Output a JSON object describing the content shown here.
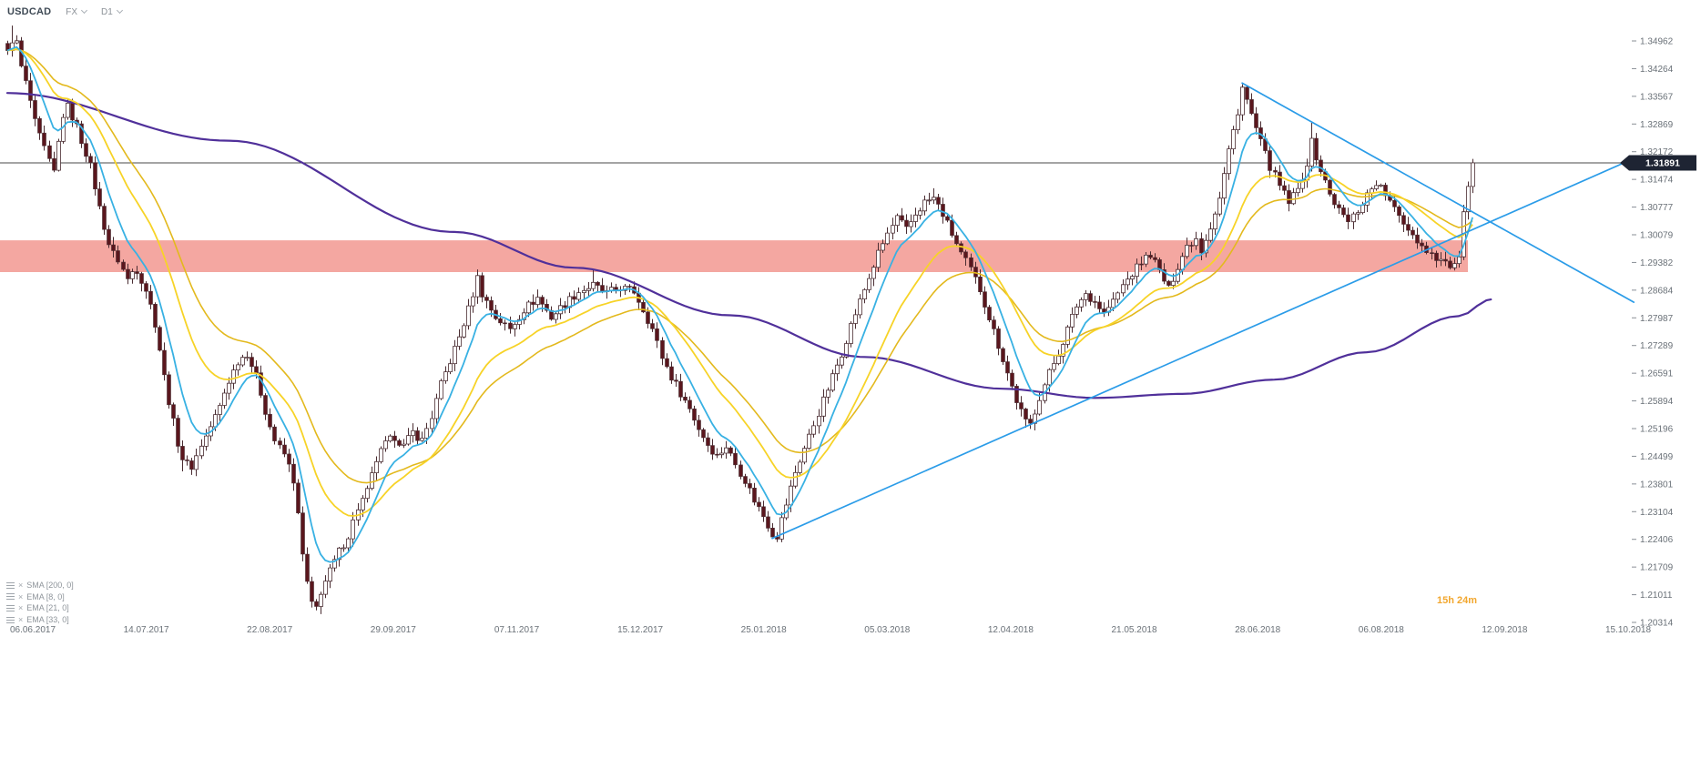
{
  "header": {
    "symbol": "USDCAD",
    "market": "FX",
    "timeframe": "D1"
  },
  "price_scale": {
    "labels": [
      "1.34962",
      "1.34264",
      "1.33567",
      "1.32869",
      "1.32172",
      "1.31474",
      "1.30777",
      "1.30079",
      "1.29382",
      "1.28684",
      "1.27987",
      "1.27289",
      "1.26591",
      "1.25894",
      "1.25196",
      "1.24499",
      "1.23801",
      "1.23104",
      "1.22406",
      "1.21709",
      "1.21011",
      "1.20314"
    ],
    "current_price_label": "1.31891",
    "countdown": "15h 24m"
  },
  "time_scale": {
    "labels": [
      "06.06.2017",
      "14.07.2017",
      "22.08.2017",
      "29.09.2017",
      "07.11.2017",
      "15.12.2017",
      "25.01.2018",
      "05.03.2018",
      "12.04.2018",
      "21.05.2018",
      "28.06.2018",
      "06.08.2018",
      "12.09.2018",
      "15.10.2018"
    ]
  },
  "legend": {
    "items": [
      {
        "label": "SMA [200, 0]"
      },
      {
        "label": "EMA [8, 0]"
      },
      {
        "label": "EMA [21, 0]"
      },
      {
        "label": "EMA [33, 0]"
      }
    ]
  },
  "colors": {
    "up_candle": "#ffffff",
    "down_candle": "#5a161d",
    "candle_outline": "#4a2d32",
    "sma200": "#50309a",
    "ema8": "#38b1e3",
    "ema21": "#f7d327",
    "ema33": "#e3b91d",
    "trendline": "#2b9ce8",
    "zone_fill": "#ea4f44",
    "price_line": "#4a4a4a",
    "badge_bg": "#1e2433",
    "badge_text": "#ffffff",
    "axis_text": "#6a7178",
    "tick": "#8a8f96",
    "countdown": "#f2a72e"
  },
  "chart_data": {
    "type": "candlestick",
    "symbol": "USDCAD",
    "timeframe": "D1",
    "current_price": 1.31891,
    "y_axis": {
      "min": 1.20314,
      "max": 1.34962,
      "tick_step": 0.006975
    },
    "x_axis": {
      "start": "06.06.2017",
      "end": "15.10.2018"
    },
    "support_zone": {
      "price_low": 1.2914,
      "price_high": 1.2994,
      "from_day": 0,
      "to_day": 317
    },
    "trendlines": [
      {
        "name": "ascending-support",
        "from": [
          166,
          1.2243
        ],
        "to": [
          353,
          1.32
        ]
      },
      {
        "name": "descending-resistance",
        "from": [
          268,
          1.339
        ],
        "to": [
          353,
          1.2838
        ]
      }
    ],
    "indicators": [
      {
        "name": "SMA",
        "params": [
          200,
          0
        ],
        "color": "#50309a"
      },
      {
        "name": "EMA",
        "params": [
          8,
          0
        ],
        "color": "#38b1e3"
      },
      {
        "name": "EMA",
        "params": [
          21,
          0
        ],
        "color": "#f7d327"
      },
      {
        "name": "EMA",
        "params": [
          33,
          0
        ],
        "color": "#e3b91d"
      }
    ],
    "sma200_points": [
      [
        0,
        1.3365
      ],
      [
        48,
        1.3245
      ],
      [
        97,
        1.3015
      ],
      [
        123,
        1.2925
      ],
      [
        157,
        1.2805
      ],
      [
        186,
        1.27
      ],
      [
        216,
        1.262
      ],
      [
        236,
        1.2597
      ],
      [
        255,
        1.2607
      ],
      [
        275,
        1.2643
      ],
      [
        295,
        1.2712
      ],
      [
        315,
        1.2803
      ],
      [
        322,
        1.2845
      ]
    ],
    "wick_overrides": [
      [
        1,
        1.3535,
        null
      ],
      [
        38,
        null,
        1.2412
      ],
      [
        67,
        null,
        1.2062
      ],
      [
        127,
        1.292,
        null
      ],
      [
        166,
        null,
        1.2247
      ],
      [
        201,
        1.3125,
        null
      ],
      [
        221,
        null,
        1.2522
      ],
      [
        268,
        1.3387,
        null
      ],
      [
        283,
        1.329,
        null
      ],
      [
        318,
        1.3199,
        null
      ]
    ],
    "close_waypoints": [
      [
        0,
        1.3465
      ],
      [
        1,
        1.35
      ],
      [
        2,
        1.349
      ],
      [
        3,
        1.343
      ],
      [
        4,
        1.339
      ],
      [
        5,
        1.3345
      ],
      [
        6,
        1.329
      ],
      [
        7,
        1.3255
      ],
      [
        8,
        1.3225
      ],
      [
        9,
        1.319
      ],
      [
        10,
        1.3165
      ],
      [
        11,
        1.324
      ],
      [
        12,
        1.331
      ],
      [
        13,
        1.333
      ],
      [
        14,
        1.3305
      ],
      [
        15,
        1.328
      ],
      [
        16,
        1.3245
      ],
      [
        17,
        1.3215
      ],
      [
        18,
        1.318
      ],
      [
        19,
        1.313
      ],
      [
        20,
        1.3075
      ],
      [
        21,
        1.303
      ],
      [
        22,
        1.2985
      ],
      [
        23,
        1.296
      ],
      [
        24,
        1.2945
      ],
      [
        25,
        1.292
      ],
      [
        26,
        1.2895
      ],
      [
        27,
        1.2915
      ],
      [
        28,
        1.292
      ],
      [
        29,
        1.2895
      ],
      [
        30,
        1.287
      ],
      [
        31,
        1.283
      ],
      [
        32,
        1.2785
      ],
      [
        33,
        1.272
      ],
      [
        34,
        1.265
      ],
      [
        35,
        1.259
      ],
      [
        36,
        1.2535
      ],
      [
        37,
        1.2485
      ],
      [
        38,
        1.2445
      ],
      [
        39,
        1.243
      ],
      [
        40,
        1.2425
      ],
      [
        41,
        1.245
      ],
      [
        42,
        1.248
      ],
      [
        43,
        1.25
      ],
      [
        44,
        1.2525
      ],
      [
        45,
        1.255
      ],
      [
        46,
        1.2575
      ],
      [
        47,
        1.261
      ],
      [
        48,
        1.264
      ],
      [
        49,
        1.2665
      ],
      [
        50,
        1.269
      ],
      [
        51,
        1.27
      ],
      [
        52,
        1.271
      ],
      [
        53,
        1.268
      ],
      [
        54,
        1.265
      ],
      [
        55,
        1.261
      ],
      [
        56,
        1.2565
      ],
      [
        57,
        1.2525
      ],
      [
        58,
        1.249
      ],
      [
        59,
        1.247
      ],
      [
        60,
        1.2455
      ],
      [
        61,
        1.2425
      ],
      [
        62,
        1.239
      ],
      [
        63,
        1.23
      ],
      [
        64,
        1.22
      ],
      [
        65,
        1.213
      ],
      [
        66,
        1.2075
      ],
      [
        67,
        1.2068
      ],
      [
        68,
        1.211
      ],
      [
        70,
        1.216
      ],
      [
        72,
        1.221
      ],
      [
        74,
        1.225
      ],
      [
        76,
        1.232
      ],
      [
        78,
        1.236
      ],
      [
        80,
        1.244
      ],
      [
        82,
        1.248
      ],
      [
        84,
        1.25
      ],
      [
        86,
        1.2475
      ],
      [
        88,
        1.251
      ],
      [
        90,
        1.249
      ],
      [
        92,
        1.255
      ],
      [
        94,
        1.263
      ],
      [
        96,
        1.269
      ],
      [
        98,
        1.275
      ],
      [
        100,
        1.282
      ],
      [
        102,
        1.29
      ],
      [
        103,
        1.286
      ],
      [
        106,
        1.28
      ],
      [
        109,
        1.277
      ],
      [
        112,
        1.282
      ],
      [
        115,
        1.285
      ],
      [
        118,
        1.28
      ],
      [
        121,
        1.2835
      ],
      [
        124,
        1.2865
      ],
      [
        127,
        1.288
      ],
      [
        130,
        1.286
      ],
      [
        133,
        1.2875
      ],
      [
        136,
        1.2865
      ],
      [
        138,
        1.282
      ],
      [
        140,
        1.277
      ],
      [
        142,
        1.27
      ],
      [
        144,
        1.265
      ],
      [
        146,
        1.261
      ],
      [
        148,
        1.257
      ],
      [
        150,
        1.252
      ],
      [
        152,
        1.248
      ],
      [
        154,
        1.245
      ],
      [
        156,
        1.2475
      ],
      [
        158,
        1.243
      ],
      [
        160,
        1.239
      ],
      [
        162,
        1.234
      ],
      [
        164,
        1.23
      ],
      [
        166,
        1.2255
      ],
      [
        167,
        1.225
      ],
      [
        169,
        1.233
      ],
      [
        171,
        1.241
      ],
      [
        173,
        1.247
      ],
      [
        175,
        1.253
      ],
      [
        177,
        1.259
      ],
      [
        179,
        1.265
      ],
      [
        181,
        1.271
      ],
      [
        183,
        1.278
      ],
      [
        185,
        1.284
      ],
      [
        187,
        1.29
      ],
      [
        189,
        1.296
      ],
      [
        191,
        1.301
      ],
      [
        193,
        1.305
      ],
      [
        195,
        1.302
      ],
      [
        197,
        1.306
      ],
      [
        199,
        1.309
      ],
      [
        201,
        1.31
      ],
      [
        203,
        1.306
      ],
      [
        205,
        1.301
      ],
      [
        207,
        1.296
      ],
      [
        209,
        1.292
      ],
      [
        211,
        1.287
      ],
      [
        213,
        1.28
      ],
      [
        215,
        1.273
      ],
      [
        217,
        1.266
      ],
      [
        219,
        1.259
      ],
      [
        221,
        1.2535
      ],
      [
        222,
        1.253
      ],
      [
        224,
        1.26
      ],
      [
        226,
        1.266
      ],
      [
        228,
        1.271
      ],
      [
        230,
        1.277
      ],
      [
        232,
        1.283
      ],
      [
        234,
        1.286
      ],
      [
        236,
        1.284
      ],
      [
        238,
        1.281
      ],
      [
        240,
        1.284
      ],
      [
        242,
        1.288
      ],
      [
        244,
        1.291
      ],
      [
        246,
        1.294
      ],
      [
        248,
        1.296
      ],
      [
        250,
        1.2915
      ],
      [
        252,
        1.287
      ],
      [
        254,
        1.293
      ],
      [
        256,
        1.298
      ],
      [
        258,
        1.3
      ],
      [
        259,
        1.297
      ],
      [
        261,
        1.303
      ],
      [
        263,
        1.31
      ],
      [
        265,
        1.322
      ],
      [
        267,
        1.332
      ],
      [
        268,
        1.338
      ],
      [
        270,
        1.331
      ],
      [
        272,
        1.324
      ],
      [
        274,
        1.318
      ],
      [
        276,
        1.313
      ],
      [
        278,
        1.309
      ],
      [
        280,
        1.312
      ],
      [
        282,
        1.319
      ],
      [
        283,
        1.324
      ],
      [
        285,
        1.317
      ],
      [
        287,
        1.311
      ],
      [
        289,
        1.307
      ],
      [
        291,
        1.304
      ],
      [
        293,
        1.307
      ],
      [
        295,
        1.311
      ],
      [
        297,
        1.314
      ],
      [
        299,
        1.311
      ],
      [
        301,
        1.307
      ],
      [
        303,
        1.304
      ],
      [
        305,
        1.301
      ],
      [
        307,
        1.298
      ],
      [
        309,
        1.296
      ],
      [
        311,
        1.2945
      ],
      [
        313,
        1.293
      ],
      [
        314,
        1.2925
      ],
      [
        315,
        1.296
      ],
      [
        316,
        1.306
      ],
      [
        317,
        1.312
      ],
      [
        318,
        1.3189
      ]
    ]
  }
}
